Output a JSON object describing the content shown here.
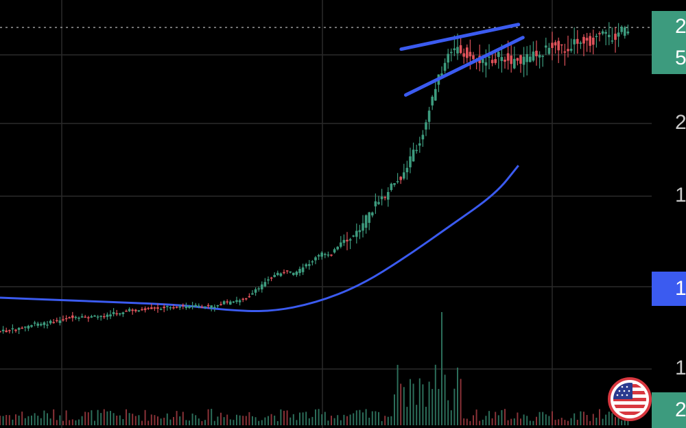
{
  "chart_data": {
    "type": "candlestick",
    "description_series": [
      {
        "name": "price",
        "kind": "candles"
      },
      {
        "name": "moving-average",
        "kind": "line",
        "color": "#3b5bf0"
      },
      {
        "name": "volume",
        "kind": "bars"
      }
    ],
    "ylim": [
      0,
      100
    ],
    "colors": {
      "up": "#3d9b7e",
      "down": "#e0525a",
      "trendline": "#3b5bf0",
      "ma": "#3b5bf0",
      "grid": "#2a2a2a"
    },
    "price_points": [
      [
        0,
        92
      ],
      [
        4,
        92
      ],
      [
        8,
        91.5
      ],
      [
        12,
        91
      ],
      [
        16,
        90
      ],
      [
        20,
        90
      ],
      [
        24,
        89.5
      ],
      [
        28,
        89
      ],
      [
        32,
        88
      ],
      [
        36,
        88.5
      ],
      [
        40,
        88
      ],
      [
        44,
        88
      ],
      [
        48,
        87.5
      ],
      [
        52,
        87
      ],
      [
        56,
        86.5
      ],
      [
        60,
        86
      ],
      [
        64,
        86
      ],
      [
        68,
        85.5
      ],
      [
        72,
        85.5
      ],
      [
        76,
        85
      ],
      [
        80,
        85
      ],
      [
        84,
        85
      ],
      [
        88,
        85
      ],
      [
        92,
        85
      ],
      [
        96,
        85
      ],
      [
        100,
        84
      ],
      [
        104,
        84
      ],
      [
        108,
        83
      ],
      [
        112,
        82
      ],
      [
        116,
        80
      ],
      [
        120,
        77
      ],
      [
        124,
        76
      ],
      [
        128,
        75
      ],
      [
        132,
        76
      ],
      [
        136,
        74
      ],
      [
        140,
        72
      ],
      [
        144,
        70
      ],
      [
        148,
        70
      ],
      [
        152,
        68
      ],
      [
        156,
        66
      ],
      [
        160,
        64
      ],
      [
        164,
        60
      ],
      [
        168,
        56
      ],
      [
        172,
        54
      ],
      [
        176,
        50
      ],
      [
        180,
        48
      ],
      [
        184,
        42
      ],
      [
        188,
        38
      ],
      [
        192,
        28
      ],
      [
        196,
        20
      ],
      [
        200,
        14
      ],
      [
        204,
        12
      ],
      [
        208,
        13
      ],
      [
        212,
        15
      ],
      [
        216,
        16
      ],
      [
        220,
        15
      ],
      [
        224,
        14
      ],
      [
        228,
        16
      ],
      [
        232,
        15
      ],
      [
        236,
        14
      ],
      [
        240,
        13
      ],
      [
        244,
        12
      ],
      [
        248,
        11
      ],
      [
        252,
        12
      ],
      [
        256,
        10
      ],
      [
        260,
        9
      ],
      [
        264,
        10
      ],
      [
        268,
        8
      ],
      [
        272,
        9
      ],
      [
        276,
        7
      ],
      [
        280,
        7
      ]
    ],
    "ma_points": [
      [
        0,
        82.5
      ],
      [
        40,
        83.5
      ],
      [
        80,
        84.5
      ],
      [
        100,
        86
      ],
      [
        120,
        86.5
      ],
      [
        140,
        84
      ],
      [
        160,
        79
      ],
      [
        180,
        71
      ],
      [
        200,
        62
      ],
      [
        220,
        53
      ],
      [
        230,
        45
      ]
    ],
    "wedge": {
      "upper": [
        [
          178,
          12
        ],
        [
          230,
          5
        ]
      ],
      "lower": [
        [
          180,
          25
        ],
        [
          232,
          8.7
        ]
      ]
    },
    "last_price_level": 6.5,
    "y_tick_labels": [
      "2",
      "1",
      "1"
    ],
    "tags": {
      "top_1": "2",
      "top_2": "5",
      "ma_tag": "1",
      "bottom_tag": "2"
    }
  }
}
